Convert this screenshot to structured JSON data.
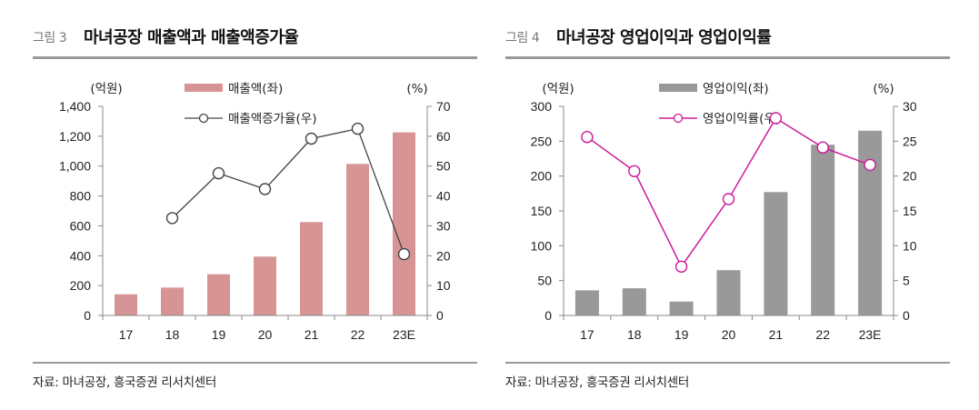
{
  "colors": {
    "sales_bar": "#D69594",
    "sales_line": "#444444",
    "op_bar": "#999999",
    "op_line": "#CC1A99",
    "rule": "#999999"
  },
  "left": {
    "fig_label": "그림 3",
    "title": "마녀공장 매출액과 매출액증가율",
    "source": "자료: 마녀공장, 흥국증권 리서치센터"
  },
  "right": {
    "fig_label": "그림 4",
    "title": "마녀공장 영업이익과 영업이익률",
    "source": "자료: 마녀공장, 흥국증권 리서치센터"
  },
  "chart_data": [
    {
      "type": "bar+line",
      "title": "마녀공장 매출액과 매출액증가율",
      "categories": [
        "17",
        "18",
        "19",
        "20",
        "21",
        "22",
        "23E"
      ],
      "y_left": {
        "label": "(억원)",
        "lim": [
          0,
          1400
        ],
        "ticks": [
          0,
          200,
          400,
          600,
          800,
          1000,
          1200,
          1400
        ],
        "tick_labels": [
          "0",
          "200",
          "400",
          "600",
          "800",
          "1,000",
          "1,200",
          "1,400"
        ]
      },
      "y_right": {
        "label": "(%)",
        "lim": [
          0,
          70
        ],
        "ticks": [
          0,
          10,
          20,
          30,
          40,
          50,
          60,
          70
        ],
        "tick_labels": [
          "0",
          "10",
          "20",
          "30",
          "40",
          "50",
          "60",
          "70"
        ]
      },
      "series": [
        {
          "name": "매출액(좌)",
          "kind": "bar",
          "axis": "left",
          "values": [
            142,
            187,
            276,
            394,
            625,
            1015,
            1226
          ]
        },
        {
          "name": "매출액증가율(우)",
          "kind": "line",
          "axis": "right",
          "values": [
            null,
            32.6,
            47.6,
            42.3,
            59.2,
            62.5,
            20.5
          ]
        }
      ],
      "legend": "top-center",
      "grid": false
    },
    {
      "type": "bar+line",
      "title": "마녀공장 영업이익과 영업이익률",
      "categories": [
        "17",
        "18",
        "19",
        "20",
        "21",
        "22",
        "23E"
      ],
      "y_left": {
        "label": "(억원)",
        "lim": [
          0,
          300
        ],
        "ticks": [
          0,
          50,
          100,
          150,
          200,
          250,
          300
        ],
        "tick_labels": [
          "0",
          "50",
          "100",
          "150",
          "200",
          "250",
          "300"
        ]
      },
      "y_right": {
        "label": "(%)",
        "lim": [
          0,
          30
        ],
        "ticks": [
          0,
          5,
          10,
          15,
          20,
          25,
          30
        ],
        "tick_labels": [
          "0",
          "5",
          "10",
          "15",
          "20",
          "25",
          "30"
        ]
      },
      "series": [
        {
          "name": "영업이익(좌)",
          "kind": "bar",
          "axis": "left",
          "values": [
            36,
            39,
            20,
            65,
            177,
            245,
            265
          ]
        },
        {
          "name": "영업이익률(우)",
          "kind": "line",
          "axis": "right",
          "values": [
            25.6,
            20.7,
            7.0,
            16.7,
            28.3,
            24.1,
            21.6
          ]
        }
      ],
      "legend": "top-center",
      "grid": false
    }
  ]
}
